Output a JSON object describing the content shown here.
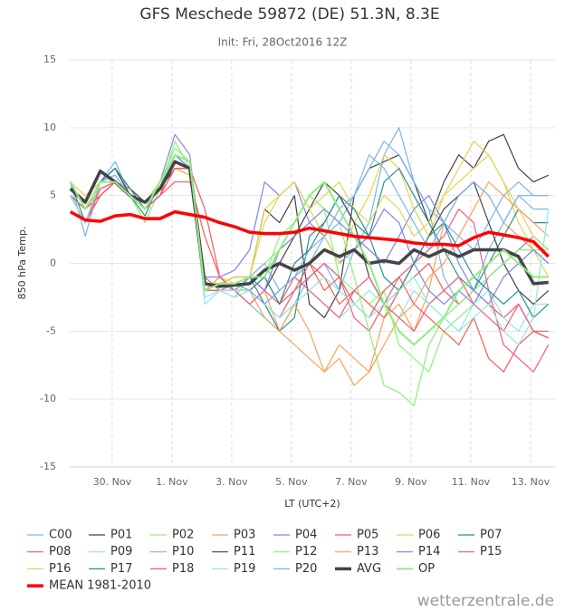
{
  "chart_data": {
    "type": "line",
    "title": "GFS Meschede 59872 (DE) 51.3N, 8.3E",
    "subtitle": "Init: Fri, 28Oct2016 12Z",
    "y_label": "850 hPa Temp.",
    "x_label": "LT (UTC+2)",
    "credit": "wetterzentrale.de",
    "grid": true,
    "xlim": [
      28.58,
      44.82
    ],
    "ylim": [
      -15,
      15
    ],
    "yticks": [
      -15,
      -10,
      -5,
      0,
      5,
      10,
      15
    ],
    "xticks": [
      {
        "value": 30,
        "label": "30. Nov"
      },
      {
        "value": 32,
        "label": "1. Nov"
      },
      {
        "value": 34,
        "label": "3. Nov"
      },
      {
        "value": 36,
        "label": "5. Nov"
      },
      {
        "value": 38,
        "label": "7. Nov"
      },
      {
        "value": 40,
        "label": "9. Nov"
      },
      {
        "value": 42,
        "label": "11. Nov"
      },
      {
        "value": 44,
        "label": "13. Nov"
      }
    ],
    "x": [
      28.6,
      29.1,
      29.6,
      30.1,
      30.6,
      31.1,
      31.6,
      32.1,
      32.6,
      33.1,
      33.6,
      34.1,
      34.6,
      35.1,
      35.6,
      36.1,
      36.6,
      37.1,
      37.6,
      38.1,
      38.6,
      39.1,
      39.6,
      40.1,
      40.6,
      41.1,
      41.6,
      42.1,
      42.6,
      43.1,
      43.6,
      44.1,
      44.6
    ],
    "series": [
      {
        "name": "C00",
        "color": "#7cb5ec",
        "line_width": 1.2,
        "values": [
          6,
          2,
          6,
          7.5,
          5,
          4,
          5.5,
          8,
          7.5,
          -2,
          -1.5,
          -2,
          -3,
          -4,
          -5,
          -3,
          -1,
          0,
          -2,
          1,
          3,
          8,
          10,
          6,
          4,
          -1,
          -3,
          -2,
          1,
          3,
          5,
          4,
          4
        ]
      },
      {
        "name": "P01",
        "color": "#434348",
        "line_width": 1.2,
        "values": [
          5,
          4,
          6,
          7,
          5.5,
          4.5,
          6,
          7.5,
          7,
          -1.5,
          -1.5,
          -1,
          -1,
          4,
          3,
          5,
          -3,
          -4,
          -2,
          5,
          7,
          7.5,
          8,
          6,
          3,
          6,
          8,
          7,
          9,
          9.5,
          7,
          6,
          6.5
        ]
      },
      {
        "name": "P02",
        "color": "#90ed7d",
        "line_width": 1.2,
        "values": [
          5,
          3,
          6,
          6,
          5,
          3,
          5.5,
          9,
          7,
          -2,
          -2,
          -2.5,
          -1,
          0,
          1,
          3,
          5,
          4,
          -1,
          -2,
          -3,
          -2,
          -6,
          -7,
          -8,
          -5,
          -4,
          -3,
          -1,
          0,
          1,
          1,
          0
        ]
      },
      {
        "name": "P03",
        "color": "#f7a35c",
        "line_width": 1.2,
        "values": [
          6,
          4,
          5.5,
          6,
          5,
          4,
          6,
          7,
          6.5,
          -2,
          -1.5,
          -2,
          -3,
          -2,
          -5,
          -6,
          -7,
          -8,
          -6,
          -7,
          -8,
          -4,
          -3,
          -5,
          -2,
          3,
          5,
          6,
          5,
          3,
          2,
          1,
          0
        ]
      },
      {
        "name": "P04",
        "color": "#8085e9",
        "line_width": 1.2,
        "values": [
          5,
          4,
          6,
          6,
          5,
          4,
          6,
          9.5,
          8,
          -2,
          -1,
          -0.5,
          1,
          6,
          5,
          6,
          3,
          2,
          0,
          1,
          2,
          4,
          3,
          0,
          -2,
          -3,
          -2,
          -3,
          -1,
          0,
          1,
          2,
          1
        ]
      },
      {
        "name": "P05",
        "color": "#f15c80",
        "line_width": 1.2,
        "values": [
          5,
          3,
          5.5,
          6,
          5.5,
          4,
          5,
          8,
          7,
          -1,
          -2,
          -1.5,
          -2,
          -3,
          -4,
          -2,
          -1,
          0,
          -1,
          -4,
          -5,
          -3,
          -1,
          0,
          1,
          2,
          4,
          3,
          -2,
          -6,
          -7,
          -8,
          -6
        ]
      },
      {
        "name": "P06",
        "color": "#e4d354",
        "line_width": 1.2,
        "values": [
          6,
          5,
          6,
          6.5,
          5,
          4.5,
          6,
          7,
          7,
          -2,
          -1,
          -1.5,
          -1,
          4,
          5,
          6,
          4,
          2,
          0,
          3,
          5,
          8,
          7,
          4,
          2,
          5,
          7,
          9,
          8,
          6,
          3,
          1,
          -1
        ]
      },
      {
        "name": "P07",
        "color": "#2b908f",
        "line_width": 1.2,
        "values": [
          6,
          3,
          5,
          6,
          5,
          3.5,
          6,
          7,
          6.5,
          -2,
          -2,
          -2,
          -1,
          -3,
          -5,
          -4,
          2,
          3,
          5,
          3,
          2,
          6,
          7,
          5,
          3,
          1,
          -1,
          -2,
          0,
          2,
          4,
          3,
          3
        ]
      },
      {
        "name": "P08",
        "color": "#f45b5b",
        "line_width": 1.2,
        "values": [
          5,
          4,
          5,
          6,
          5,
          4,
          5,
          6,
          6,
          2,
          -1,
          -2,
          -2,
          -1,
          -3,
          -2,
          0,
          -1,
          -3,
          -2,
          -3,
          -4,
          -2,
          -1,
          0,
          -2,
          -3,
          -2,
          -3,
          -4,
          -3,
          -5,
          -5.5
        ]
      },
      {
        "name": "P09",
        "color": "#91e8e1",
        "line_width": 1.2,
        "values": [
          5,
          3,
          5,
          6,
          5,
          4,
          5.5,
          8,
          7.5,
          -3,
          -2,
          -2.5,
          -2,
          -3,
          -4,
          -3,
          -2,
          -3,
          -4,
          -3,
          -2,
          -3,
          -4,
          -2,
          -3,
          -4,
          -5,
          -3,
          -2,
          -4,
          -5,
          -3,
          -3
        ]
      },
      {
        "name": "P10",
        "color": "#7cb5ec",
        "line_width": 1.2,
        "values": [
          5,
          4,
          6,
          7,
          5,
          4,
          6,
          8,
          7,
          -2,
          -1.5,
          -2,
          -1,
          0,
          -2,
          -1,
          1,
          2,
          3,
          5,
          7,
          9,
          8,
          6,
          4,
          3,
          2,
          1,
          3,
          5,
          6,
          5,
          5
        ]
      },
      {
        "name": "P11",
        "color": "#434348",
        "line_width": 1.2,
        "values": [
          5,
          3,
          6,
          7,
          5,
          4.5,
          5.5,
          7,
          7,
          -1.5,
          -1.5,
          -1.5,
          -1,
          -2,
          0,
          2,
          4,
          6,
          5,
          3,
          -1,
          -3,
          -2,
          0,
          2,
          4,
          5,
          6,
          3,
          0,
          -2,
          -3,
          -2
        ]
      },
      {
        "name": "P12",
        "color": "#90ed7d",
        "line_width": 1.2,
        "values": [
          5,
          4,
          6,
          6.5,
          5,
          4,
          6,
          8.5,
          7.5,
          -2,
          -2,
          -2,
          -2,
          -1,
          2,
          3,
          5,
          4,
          3,
          -1,
          -5,
          -9,
          -9.5,
          -10.5,
          -6,
          -4,
          -3,
          -2,
          -1,
          0,
          1,
          1,
          1
        ]
      },
      {
        "name": "P13",
        "color": "#f7a35c",
        "line_width": 1.2,
        "values": [
          6,
          4,
          6,
          6,
          5,
          4,
          6,
          7.5,
          7,
          -2,
          -1,
          -2,
          -2,
          -4,
          -5,
          -3,
          -5,
          -8,
          -7,
          -9,
          -8,
          -6,
          -4,
          -3,
          -1,
          0,
          2,
          4,
          6,
          5,
          4,
          3,
          2
        ]
      },
      {
        "name": "P14",
        "color": "#8085e9",
        "line_width": 1.2,
        "values": [
          5,
          4,
          6,
          6,
          5,
          4,
          6,
          8,
          7,
          -1,
          -1,
          -2,
          -1,
          -2,
          1,
          2,
          3,
          4,
          3,
          2,
          1,
          0,
          2,
          4,
          5,
          3,
          0,
          -2,
          -3,
          -1,
          0,
          1,
          0
        ]
      },
      {
        "name": "P15",
        "color": "#f15c80",
        "line_width": 1.2,
        "values": [
          5,
          3,
          5,
          6,
          5,
          4,
          5,
          7,
          7,
          -2,
          -2,
          -2,
          -3,
          -2,
          -3,
          -1,
          -2,
          -3,
          -4,
          -2,
          -1,
          -3,
          -4,
          -5,
          -3,
          -2,
          -1,
          -3,
          -4,
          -5,
          -3,
          -5,
          -5
        ]
      },
      {
        "name": "P16",
        "color": "#e4d354",
        "line_width": 1.2,
        "values": [
          6,
          4,
          6,
          6,
          5,
          4.5,
          6,
          7,
          6.5,
          -1.5,
          -1.5,
          -1,
          -1,
          3,
          5,
          6,
          4,
          5,
          6,
          4,
          3,
          5,
          4,
          2,
          3,
          5,
          6,
          7,
          8,
          6,
          4,
          2,
          1
        ]
      },
      {
        "name": "P17",
        "color": "#2b908f",
        "line_width": 1.2,
        "values": [
          6,
          4,
          6,
          7,
          5.5,
          4,
          6,
          7.5,
          7,
          -2,
          -1.5,
          -1.5,
          -2,
          -1,
          -3,
          0,
          1,
          3,
          5,
          4,
          2,
          -1,
          -2,
          0,
          2,
          3,
          1,
          -1,
          -2,
          -3,
          -2,
          -4,
          -3
        ]
      },
      {
        "name": "P18",
        "color": "#f45b5b",
        "line_width": 1.2,
        "values": [
          5,
          4,
          5,
          6,
          5,
          4,
          5,
          7,
          7,
          4,
          -1,
          -2,
          -2,
          -3,
          -2,
          -1,
          0,
          -2,
          -1,
          -3,
          -4,
          -2,
          -1,
          -3,
          -4,
          -5,
          -6,
          -4,
          -7,
          -8,
          -6,
          -5,
          -5.5
        ]
      },
      {
        "name": "P19",
        "color": "#91e8e1",
        "line_width": 1.2,
        "values": [
          5,
          3,
          6,
          6,
          5,
          4,
          6,
          7.5,
          7,
          -2.5,
          -2,
          -2,
          -2,
          -3,
          -4,
          -3,
          -2,
          -1,
          -2,
          -3,
          -4,
          -3,
          -2,
          -1,
          -3,
          -4,
          -5,
          -4,
          -3,
          -5,
          -6,
          -4,
          4
        ]
      },
      {
        "name": "P20",
        "color": "#7cb5ec",
        "line_width": 1.2,
        "values": [
          6,
          4,
          6,
          6.5,
          5,
          4,
          5.5,
          7.5,
          7,
          -2,
          -1.5,
          -1.5,
          -2,
          -3,
          -2,
          -1,
          0,
          2,
          4,
          5,
          8,
          7,
          5,
          3,
          1,
          3,
          5,
          6,
          5,
          3,
          5,
          5,
          5
        ]
      },
      {
        "name": "AVG",
        "color": "#434348",
        "line_width": 3.5,
        "values": [
          5.5,
          4.5,
          6.8,
          6,
          5,
          4.5,
          5.5,
          7.5,
          7,
          -1.5,
          -1.7,
          -1.6,
          -1.5,
          -0.5,
          0,
          -0.5,
          0,
          1,
          0.5,
          1,
          0,
          0.2,
          0,
          1,
          0.5,
          1,
          0.5,
          1,
          1,
          1,
          0.5,
          -1.5,
          -1.4
        ]
      },
      {
        "name": "OP",
        "color": "#90ed7d",
        "line_width": 2,
        "values": [
          6,
          4,
          6,
          6,
          5,
          4,
          6,
          8,
          7.5,
          -2,
          -1.5,
          -1.5,
          -1,
          -1,
          1,
          3,
          5,
          6,
          4,
          2,
          0,
          -3,
          -5,
          -6,
          -5,
          -4,
          -2,
          -1,
          0,
          1,
          0,
          -1,
          -1
        ]
      },
      {
        "name": "MEAN 1981-2010",
        "color": "#ff0000",
        "line_width": 3.5,
        "values": [
          3.8,
          3.2,
          3.1,
          3.5,
          3.6,
          3.3,
          3.3,
          3.8,
          3.6,
          3.4,
          3.0,
          2.7,
          2.3,
          2.2,
          2.2,
          2.3,
          2.6,
          2.4,
          2.2,
          2.0,
          1.9,
          1.8,
          1.7,
          1.5,
          1.4,
          1.4,
          1.3,
          1.9,
          2.3,
          2.1,
          1.9,
          1.6,
          0.5
        ]
      }
    ]
  }
}
